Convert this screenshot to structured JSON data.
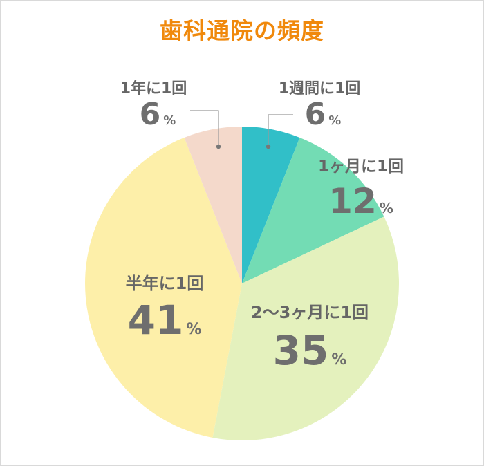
{
  "chart_data": {
    "type": "pie",
    "title": "歯科通院の頻度",
    "unit": "%",
    "slices": [
      {
        "label": "1週間に1回",
        "value": 6,
        "color": "#31bfc8"
      },
      {
        "label": "1ヶ月に1回",
        "value": 12,
        "color": "#73dcb4"
      },
      {
        "label": "2〜3ヶ月に1回",
        "value": 35,
        "color": "#e4f1bd"
      },
      {
        "label": "半年に1回",
        "value": 41,
        "color": "#fdefa9"
      },
      {
        "label": "1年に1回",
        "value": 6,
        "color": "#f4d9cb"
      }
    ]
  },
  "colors": {
    "title": "#f0890c",
    "label_text": "#666666",
    "leader_line": "#9a9a9a"
  }
}
